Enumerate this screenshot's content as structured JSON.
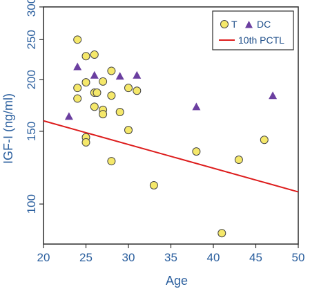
{
  "chart_data": {
    "type": "scatter",
    "xlabel": "Age",
    "ylabel": "IGF-I (ng/ml)",
    "xlim": [
      20,
      50
    ],
    "ylim": [
      80,
      300
    ],
    "y_scale": "log",
    "x_ticks": [
      20,
      25,
      30,
      35,
      40,
      45,
      50
    ],
    "y_ticks": [
      100,
      150,
      200,
      250,
      300
    ],
    "grid": false,
    "legend_position": "top-right",
    "series": [
      {
        "name": "T",
        "marker": "circle",
        "color": "#f5e86a",
        "edge_color": "#444444",
        "points": [
          {
            "x": 24,
            "y": 250
          },
          {
            "x": 25,
            "y": 228
          },
          {
            "x": 26,
            "y": 230
          },
          {
            "x": 28,
            "y": 210
          },
          {
            "x": 25,
            "y": 197
          },
          {
            "x": 27,
            "y": 198
          },
          {
            "x": 24,
            "y": 191
          },
          {
            "x": 30,
            "y": 191
          },
          {
            "x": 31,
            "y": 188
          },
          {
            "x": 26,
            "y": 186
          },
          {
            "x": 26.3,
            "y": 186
          },
          {
            "x": 24,
            "y": 180
          },
          {
            "x": 28,
            "y": 183
          },
          {
            "x": 26,
            "y": 172
          },
          {
            "x": 27,
            "y": 169
          },
          {
            "x": 27,
            "y": 165
          },
          {
            "x": 29,
            "y": 167
          },
          {
            "x": 30,
            "y": 151
          },
          {
            "x": 25,
            "y": 145
          },
          {
            "x": 25,
            "y": 141
          },
          {
            "x": 28,
            "y": 127
          },
          {
            "x": 33,
            "y": 111
          },
          {
            "x": 38,
            "y": 134
          },
          {
            "x": 43,
            "y": 128
          },
          {
            "x": 46,
            "y": 143
          },
          {
            "x": 41,
            "y": 85
          }
        ]
      },
      {
        "name": "DC",
        "marker": "triangle",
        "color": "#6b3fa0",
        "edge_color": "#6b3fa0",
        "points": [
          {
            "x": 23,
            "y": 163
          },
          {
            "x": 24,
            "y": 215
          },
          {
            "x": 26,
            "y": 205
          },
          {
            "x": 29,
            "y": 204
          },
          {
            "x": 31,
            "y": 205
          },
          {
            "x": 38,
            "y": 172
          },
          {
            "x": 47,
            "y": 183
          }
        ]
      },
      {
        "name": "10th PCTL",
        "marker": "line",
        "color": "#dd1c1c",
        "points": [
          {
            "x": 20,
            "y": 159
          },
          {
            "x": 50,
            "y": 107
          }
        ]
      }
    ]
  }
}
